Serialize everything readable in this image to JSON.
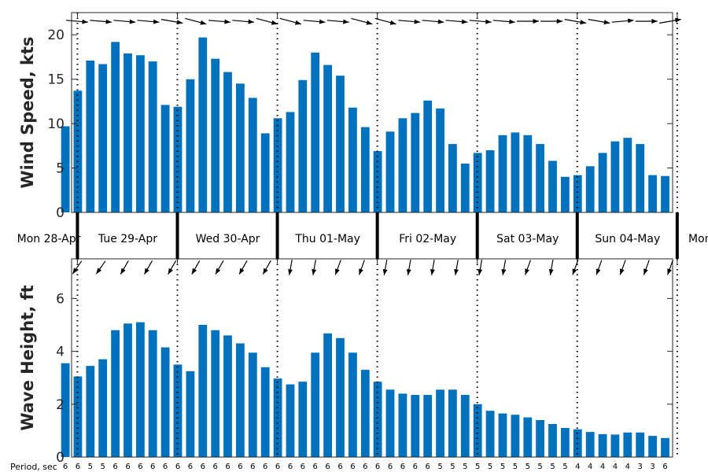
{
  "chart_data": [
    {
      "type": "bar",
      "ylabel": "Wind Speed, kts",
      "ylim": [
        0,
        22.5
      ],
      "yticks": [
        0,
        5,
        10,
        15,
        20
      ],
      "bar_color": "#0072BD",
      "x_interval_hours": 3,
      "values": [
        9.7,
        13.7,
        17.1,
        16.7,
        19.2,
        17.9,
        17.7,
        17.0,
        12.1,
        11.9,
        15.0,
        19.7,
        17.3,
        15.8,
        14.5,
        12.9,
        8.9,
        10.6,
        11.3,
        14.9,
        18.0,
        16.6,
        15.4,
        11.8,
        9.6,
        6.9,
        9.1,
        10.6,
        11.2,
        12.6,
        11.7,
        7.7,
        5.5,
        6.7,
        7.0,
        8.7,
        9.0,
        8.7,
        7.7,
        5.8,
        4.0,
        4.2,
        5.2,
        6.7,
        8.0,
        8.4,
        7.7,
        4.2,
        4.1
      ],
      "direction_arrows_from_deg": [
        275,
        275,
        275,
        275,
        280,
        285,
        275,
        275,
        285,
        285,
        275,
        275,
        285,
        285,
        275,
        275,
        275,
        275,
        275,
        270,
        270,
        280,
        280,
        265,
        270,
        260
      ]
    },
    {
      "type": "bar",
      "ylabel": "Wave Height, ft",
      "ylim": [
        0,
        7.5
      ],
      "yticks": [
        0,
        2,
        4,
        6
      ],
      "bar_color": "#0072BD",
      "x_interval_hours": 3,
      "values": [
        3.55,
        3.05,
        3.45,
        3.7,
        4.8,
        5.05,
        5.1,
        4.8,
        4.15,
        3.5,
        3.25,
        5.0,
        4.8,
        4.6,
        4.3,
        3.95,
        3.4,
        2.97,
        2.75,
        2.85,
        3.95,
        4.68,
        4.5,
        3.95,
        3.3,
        2.85,
        2.55,
        2.4,
        2.35,
        2.35,
        2.55,
        2.55,
        2.35,
        2.0,
        1.75,
        1.65,
        1.6,
        1.5,
        1.4,
        1.25,
        1.1,
        1.05,
        0.95,
        0.87,
        0.85,
        0.93,
        0.93,
        0.8,
        0.72
      ],
      "direction_arrows_from_deg": [
        35,
        35,
        30,
        30,
        30,
        30,
        30,
        30,
        30,
        10,
        10,
        20,
        20,
        10,
        10,
        10,
        10,
        10,
        10,
        20,
        10,
        20,
        20,
        20,
        20,
        20
      ]
    }
  ],
  "day_labels": [
    "Mon 28-Apr",
    "Tue 29-Apr",
    "Wed 30-Apr",
    "Thu 01-May",
    "Fri 02-May",
    "Sat 03-May",
    "Sun 04-May",
    "Mon"
  ],
  "period_title": "Period, sec",
  "periods": [
    "6",
    "6",
    "5",
    "5",
    "6",
    "6",
    "6",
    "6",
    "6",
    "6",
    "6",
    "6",
    "6",
    "6",
    "6",
    "6",
    "6",
    "6",
    "6",
    "6",
    "6",
    "6",
    "6",
    "6",
    "6",
    "6",
    "6",
    "6",
    "6",
    "6",
    "5",
    "5",
    "5",
    "5",
    "5",
    "5",
    "5",
    "5",
    "5",
    "5",
    "5",
    "4",
    "4",
    "4",
    "4",
    "4",
    "3",
    "3",
    "6"
  ]
}
